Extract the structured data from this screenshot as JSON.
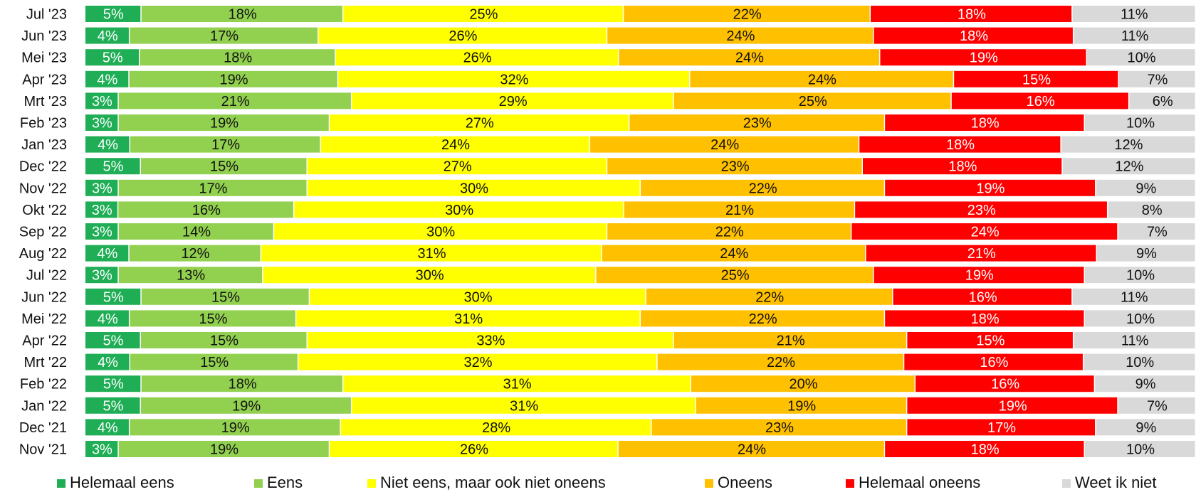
{
  "chart_data": {
    "type": "bar",
    "orientation": "horizontal",
    "stacked": true,
    "xlim": [
      0,
      100
    ],
    "unit": "%",
    "grid": false,
    "legend_position": "bottom",
    "categories": [
      "Jul '23",
      "Jun '23",
      "Mei '23",
      "Apr '23",
      "Mrt '23",
      "Feb '23",
      "Jan '23",
      "Dec '22",
      "Nov '22",
      "Okt '22",
      "Sep '22",
      "Aug '22",
      "Jul '22",
      "Jun '22",
      "Mei '22",
      "Apr '22",
      "Mrt '22",
      "Feb '22",
      "Jan '22",
      "Dec '21",
      "Nov '21"
    ],
    "series": [
      {
        "name": "Helemaal eens",
        "color": "#1fae55",
        "label_color": "#ffffff",
        "values": [
          5,
          4,
          5,
          4,
          3,
          3,
          4,
          5,
          3,
          3,
          3,
          4,
          3,
          5,
          4,
          5,
          4,
          5,
          5,
          4,
          3
        ]
      },
      {
        "name": "Eens",
        "color": "#92d050",
        "label_color": "#111111",
        "values": [
          18,
          17,
          18,
          19,
          21,
          19,
          17,
          15,
          17,
          16,
          14,
          12,
          13,
          15,
          15,
          15,
          15,
          18,
          19,
          19,
          19
        ]
      },
      {
        "name": "Niet eens, maar ook niet oneens",
        "color": "#ffff00",
        "label_color": "#111111",
        "values": [
          25,
          26,
          26,
          32,
          29,
          27,
          24,
          27,
          30,
          30,
          30,
          31,
          30,
          30,
          31,
          33,
          32,
          31,
          31,
          28,
          26
        ]
      },
      {
        "name": "Oneens",
        "color": "#ffc000",
        "label_color": "#111111",
        "values": [
          22,
          24,
          24,
          24,
          25,
          23,
          24,
          23,
          22,
          21,
          22,
          24,
          25,
          22,
          22,
          21,
          22,
          20,
          19,
          23,
          24
        ]
      },
      {
        "name": "Helemaal oneens",
        "color": "#ff0000",
        "label_color": "#ffffff",
        "values": [
          18,
          18,
          19,
          15,
          16,
          18,
          18,
          18,
          19,
          23,
          24,
          21,
          19,
          16,
          18,
          15,
          16,
          16,
          19,
          17,
          18
        ]
      },
      {
        "name": "Weet ik niet",
        "color": "#d9d9d9",
        "label_color": "#111111",
        "values": [
          11,
          11,
          10,
          7,
          6,
          10,
          12,
          12,
          9,
          8,
          7,
          9,
          10,
          11,
          10,
          11,
          10,
          9,
          7,
          9,
          10
        ]
      }
    ]
  }
}
